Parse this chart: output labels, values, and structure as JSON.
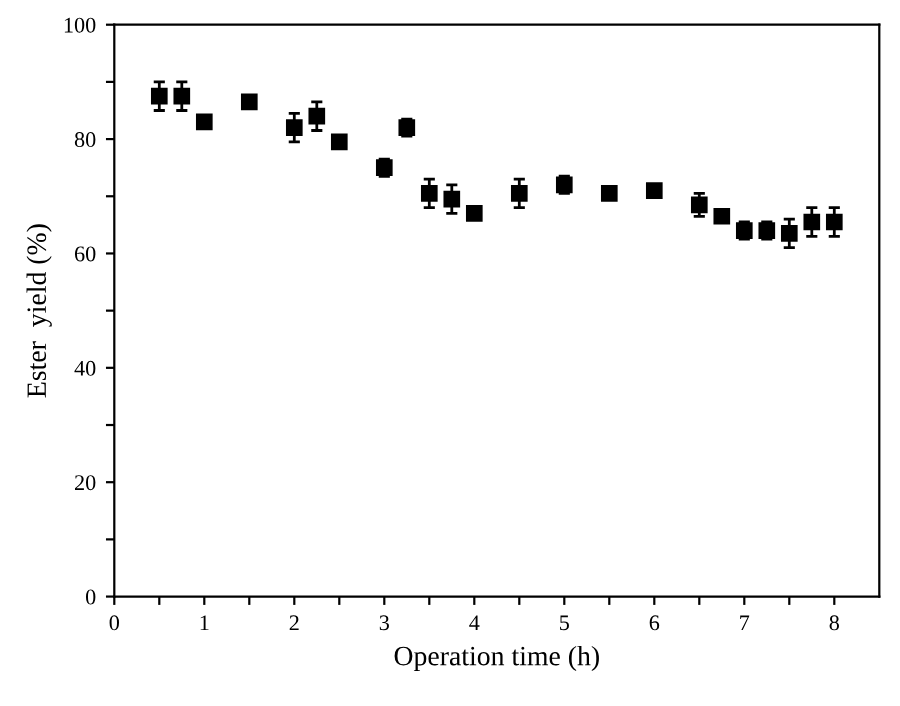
{
  "chart_data": {
    "type": "scatter",
    "xlabel": "Operation time (h)",
    "ylabel": "Ester  yield (%)",
    "x": [
      0.5,
      0.75,
      1,
      1.5,
      2,
      2.25,
      2.5,
      3,
      3.25,
      3.5,
      3.75,
      4,
      4.5,
      5,
      5.5,
      6,
      6.5,
      6.75,
      7,
      7.25,
      7.5,
      7.75,
      8
    ],
    "series": [
      {
        "color": "#000000",
        "values": [
          87.5,
          87.5,
          83,
          86.5,
          82,
          84,
          79.5,
          75,
          82,
          70.5,
          69.5,
          67,
          70.5,
          72,
          70.5,
          71,
          68.5,
          66.5,
          64,
          64,
          63.5,
          65.5,
          65.5
        ],
        "errors": [
          2.5,
          2.5,
          1,
          1,
          2.5,
          2.5,
          1,
          1.5,
          1.5,
          2.5,
          2.5,
          1,
          2.5,
          1.5,
          1,
          1,
          2,
          1,
          1.5,
          1.5,
          2.5,
          2.5,
          2.5
        ]
      }
    ],
    "marker": "square",
    "xlim": [
      0,
      8.5
    ],
    "ylim": [
      0,
      100
    ],
    "xticks": [
      0,
      {
        "value": 0.5,
        "label": null
      },
      1,
      {
        "value": 1.5,
        "label": null
      },
      2,
      {
        "value": 2.5,
        "label": null
      },
      3,
      {
        "value": 3.5,
        "label": null
      },
      4,
      {
        "value": 4.5,
        "label": null
      },
      5,
      {
        "value": 5.5,
        "label": null
      },
      6,
      {
        "value": 6.5,
        "label": null
      },
      7,
      {
        "value": 7.5,
        "label": null
      },
      8
    ],
    "yticks": [
      0,
      {
        "value": 10,
        "label": null
      },
      20,
      {
        "value": 30,
        "label": null
      },
      40,
      {
        "value": 50,
        "label": null
      },
      60,
      {
        "value": 70,
        "label": null
      },
      80,
      {
        "value": 90,
        "label": null
      },
      100
    ]
  }
}
